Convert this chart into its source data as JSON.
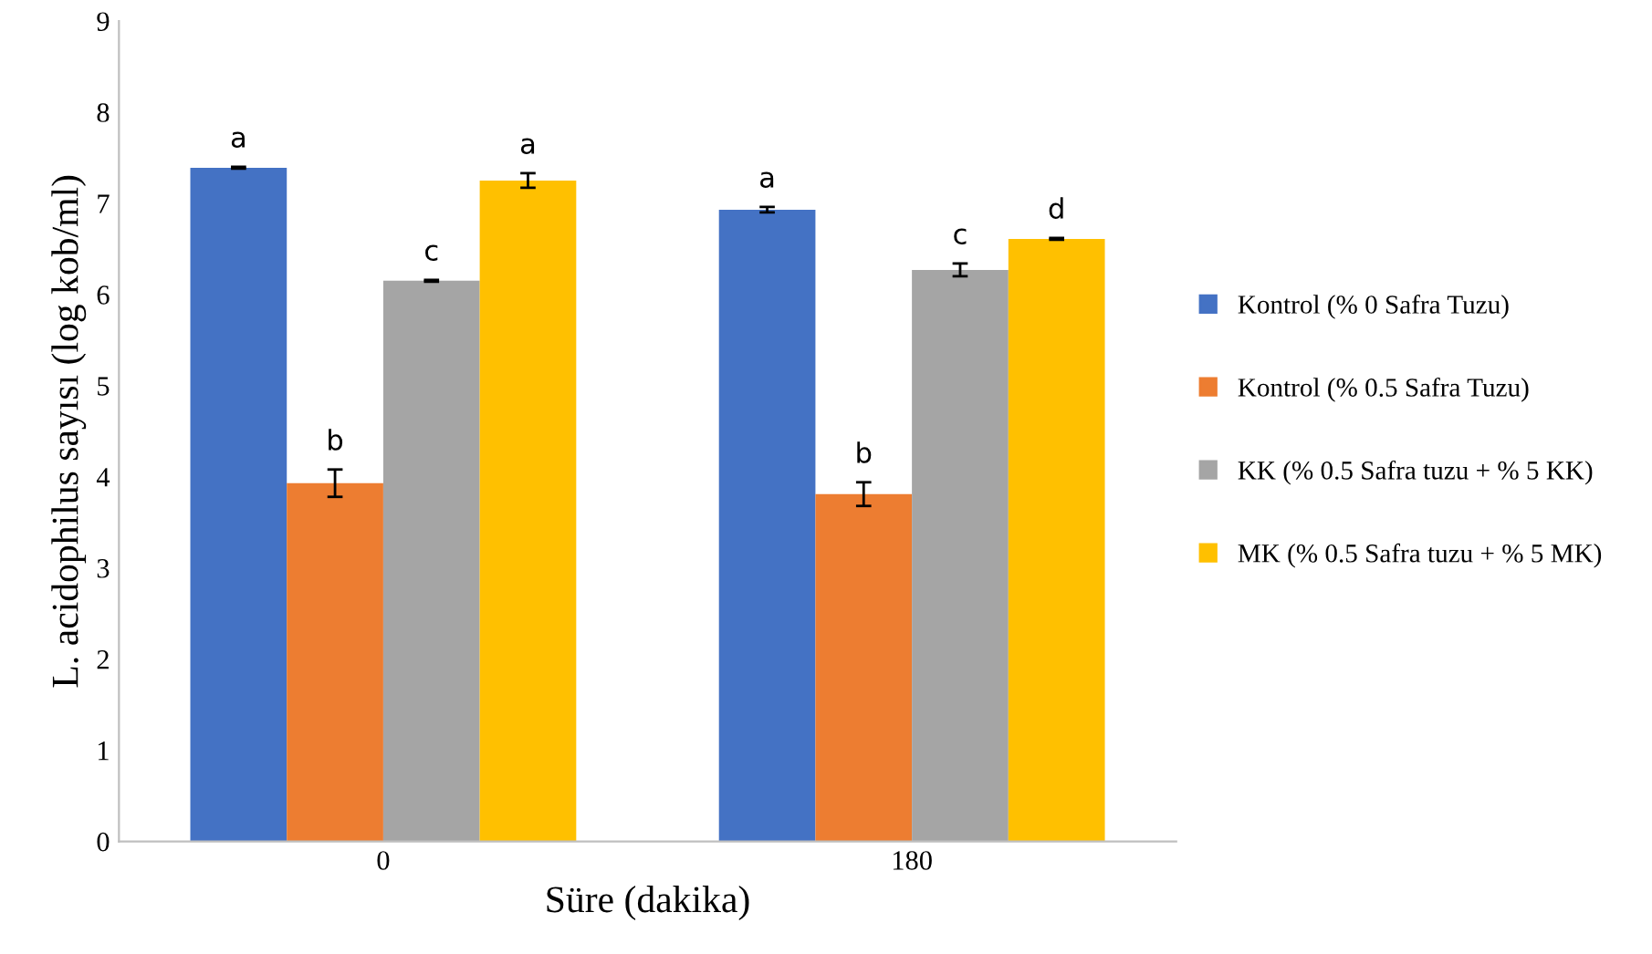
{
  "chart_data": {
    "type": "bar",
    "xlabel": "Süre (dakika)",
    "ylabel": "L. acidophilus sayısı (log kob/ml)",
    "categories": [
      "0",
      "180"
    ],
    "series": [
      {
        "name": "Kontrol (% 0 Safra Tuzu)",
        "color": "#4472c4",
        "values": [
          7.39,
          6.93
        ],
        "errors": [
          0.01,
          0.03
        ],
        "value_labels": [
          "a",
          "a"
        ]
      },
      {
        "name": "Kontrol (% 0.5 Safra Tuzu)",
        "color": "#ed7d31",
        "values": [
          3.93,
          3.81
        ],
        "errors": [
          0.15,
          0.13
        ],
        "value_labels": [
          "b",
          "b"
        ]
      },
      {
        "name": "KK (% 0.5 Safra tuzu + % 5 KK)",
        "color": "#a5a5a5",
        "values": [
          6.15,
          6.27
        ],
        "errors": [
          0.01,
          0.07
        ],
        "value_labels": [
          "c",
          "c"
        ]
      },
      {
        "name": "MK (% 0.5 Safra tuzu + % 5 MK)",
        "color": "#ffc000",
        "values": [
          7.25,
          6.61
        ],
        "errors": [
          0.08,
          0.01
        ],
        "value_labels": [
          "a",
          "d"
        ]
      }
    ],
    "ylim": [
      0,
      9
    ],
    "yticks": [
      0,
      1,
      2,
      3,
      4,
      5,
      6,
      7,
      8,
      9
    ],
    "grid": false,
    "legend": "right"
  }
}
